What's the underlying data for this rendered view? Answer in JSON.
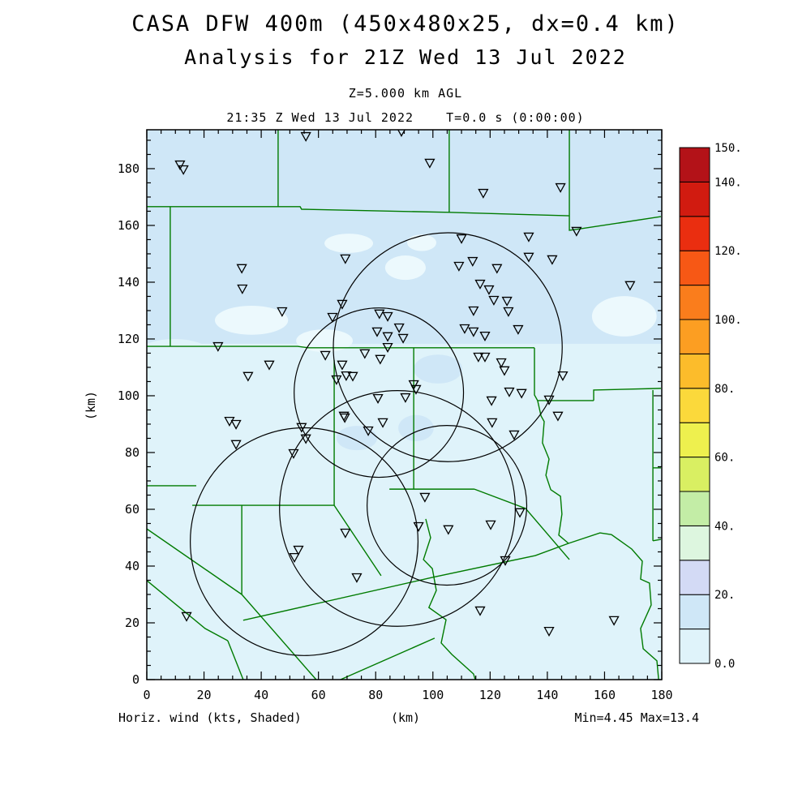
{
  "header": {
    "title_line1": "CASA DFW 400m (450x480x25, dx=0.4 km)",
    "title_line2": "Analysis for 21Z Wed 13 Jul 2022",
    "level_line": "Z=5.000 km AGL",
    "time_line": "21:35 Z Wed 13 Jul 2022    T=0.0 s (0:00:00)"
  },
  "footer": {
    "field_label": "Horiz. wind (kts, Shaded)",
    "axis_unit_label": "(km)",
    "range_label": "Min=4.45 Max=13.4"
  },
  "chart_data": {
    "type": "scatter",
    "description": "CASA DFW wind analysis map: shaded horizontal wind speed, county boundaries, radar range rings and observation station markers",
    "xlabel": "(km)",
    "ylabel": "(km)",
    "xlim": [
      0,
      180
    ],
    "ylim": [
      0,
      193.7
    ],
    "tick_minor_step": 5,
    "x_major_ticks": [
      0,
      20,
      40,
      60,
      80,
      100,
      120,
      140,
      160,
      180
    ],
    "y_major_ticks": [
      0,
      20,
      40,
      60,
      80,
      100,
      120,
      140,
      160,
      180
    ],
    "grid": false,
    "shading": {
      "field": "Horiz. wind (kts, Shaded)",
      "min": 4.45,
      "max": 13.4,
      "shade_low_color": "#dff3fa",
      "shade_high_color": "#cfe7f7",
      "pale_patch_color": "#ecf9fd",
      "high_band_y_from_km": 118.3,
      "light_patches_km": [
        [
          70.6,
          153.7,
          8.5,
          3.4
        ],
        [
          90.4,
          145.1,
          7.1,
          4.3
        ],
        [
          96.1,
          153.9,
          5.1,
          2.9
        ],
        [
          36.6,
          126.6,
          12.8,
          5.1
        ],
        [
          166.9,
          128.0,
          11.3,
          7.1
        ],
        [
          62.1,
          119.4,
          9.9,
          4.0
        ]
      ],
      "light_bites_km": [
        [
          9.6,
          112.0,
          15.6,
          8.0
        ],
        [
          42.2,
          109.4,
          17.0,
          7.4
        ],
        [
          81.9,
          104.6,
          15.6,
          11.4
        ],
        [
          124.4,
          109.4,
          12.8,
          6.9
        ],
        [
          164.1,
          110.9,
          14.2,
          6.3
        ]
      ],
      "dark_blobs_km": [
        [
          101.8,
          109.4,
          8.5,
          5.1
        ],
        [
          94.1,
          88.6,
          6.2,
          4.6
        ],
        [
          73.4,
          85.1,
          7.1,
          4.3
        ]
      ]
    },
    "colorbar": {
      "levels": [
        0,
        10,
        20,
        30,
        40,
        50,
        60,
        70,
        80,
        90,
        100,
        110,
        120,
        130,
        140,
        150
      ],
      "colors_bottom_to_top": [
        "#dff3fa",
        "#cfe7f7",
        "#d3daf5",
        "#ddf6df",
        "#c3eda6",
        "#d9ef62",
        "#eef04e",
        "#fbd93b",
        "#fcbc2b",
        "#fc9e22",
        "#fa7d1c",
        "#f75815",
        "#ea2e10",
        "#d11b10",
        "#b31218"
      ],
      "labeled_levels": [
        150,
        140,
        120,
        100,
        80,
        60,
        40,
        20,
        0
      ],
      "labels": [
        "150.",
        "140.",
        "120.",
        "100.",
        "80.",
        "60.",
        "40.",
        "20.",
        "0.0"
      ]
    },
    "range_rings_km": [
      {
        "cx": 105.2,
        "cy": 117.1,
        "r": 40.0
      },
      {
        "cx": 81.1,
        "cy": 101.1,
        "r": 29.6
      },
      {
        "cx": 55.0,
        "cy": 48.6,
        "r": 39.8
      },
      {
        "cx": 87.6,
        "cy": 60.3,
        "r": 41.2
      },
      {
        "cx": 104.9,
        "cy": 61.4,
        "r": 27.9
      }
    ],
    "station_markers_km": [
      [
        11.6,
        181.4
      ],
      [
        12.8,
        179.7
      ],
      [
        55.6,
        191.4
      ],
      [
        89.0,
        193.1
      ],
      [
        98.9,
        182.0
      ],
      [
        117.6,
        171.4
      ],
      [
        133.5,
        156.0
      ],
      [
        133.5,
        148.9
      ],
      [
        141.7,
        148.0
      ],
      [
        144.6,
        173.4
      ],
      [
        150.2,
        158.0
      ],
      [
        110.0,
        155.4
      ],
      [
        168.9,
        138.9
      ],
      [
        33.2,
        144.9
      ],
      [
        33.4,
        137.7
      ],
      [
        47.3,
        129.7
      ],
      [
        69.4,
        148.3
      ],
      [
        68.3,
        132.3
      ],
      [
        64.9,
        127.7
      ],
      [
        109.1,
        145.7
      ],
      [
        113.9,
        147.4
      ],
      [
        122.4,
        144.9
      ],
      [
        116.5,
        139.4
      ],
      [
        119.6,
        137.4
      ],
      [
        121.3,
        133.7
      ],
      [
        125.9,
        133.4
      ],
      [
        126.4,
        129.7
      ],
      [
        114.2,
        130.0
      ],
      [
        111.1,
        123.7
      ],
      [
        114.2,
        122.6
      ],
      [
        118.2,
        121.1
      ],
      [
        129.8,
        123.4
      ],
      [
        81.3,
        128.9
      ],
      [
        84.2,
        128.0
      ],
      [
        80.5,
        122.6
      ],
      [
        84.2,
        120.9
      ],
      [
        88.2,
        124.0
      ],
      [
        89.6,
        120.3
      ],
      [
        84.2,
        117.1
      ],
      [
        76.2,
        114.9
      ],
      [
        81.6,
        112.9
      ],
      [
        62.4,
        114.3
      ],
      [
        68.3,
        110.9
      ],
      [
        69.7,
        107.1
      ],
      [
        72.0,
        106.9
      ],
      [
        66.3,
        105.7
      ],
      [
        93.3,
        104.0
      ],
      [
        94.1,
        102.3
      ],
      [
        90.4,
        99.4
      ],
      [
        80.8,
        99.1
      ],
      [
        69.2,
        92.3
      ],
      [
        82.5,
        90.6
      ],
      [
        77.4,
        87.7
      ],
      [
        115.9,
        113.7
      ],
      [
        118.2,
        113.7
      ],
      [
        123.9,
        111.7
      ],
      [
        125.0,
        108.9
      ],
      [
        126.7,
        101.4
      ],
      [
        131.0,
        100.9
      ],
      [
        120.5,
        98.3
      ],
      [
        128.4,
        86.3
      ],
      [
        120.7,
        90.6
      ],
      [
        145.4,
        107.1
      ],
      [
        140.6,
        98.6
      ],
      [
        143.7,
        92.9
      ],
      [
        24.9,
        117.4
      ],
      [
        35.4,
        106.9
      ],
      [
        42.8,
        110.9
      ],
      [
        28.9,
        91.1
      ],
      [
        31.2,
        90.0
      ],
      [
        31.2,
        82.9
      ],
      [
        54.1,
        88.9
      ],
      [
        55.6,
        84.9
      ],
      [
        51.3,
        79.7
      ],
      [
        68.9,
        92.9
      ],
      [
        97.2,
        64.3
      ],
      [
        95.0,
        54.0
      ],
      [
        105.4,
        52.9
      ],
      [
        69.4,
        51.7
      ],
      [
        53.0,
        45.7
      ],
      [
        51.6,
        43.1
      ],
      [
        73.4,
        36.0
      ],
      [
        120.2,
        54.6
      ],
      [
        130.4,
        58.9
      ],
      [
        125.3,
        42.0
      ],
      [
        116.5,
        24.3
      ],
      [
        140.6,
        17.1
      ],
      [
        163.3,
        20.9
      ],
      [
        13.9,
        22.3
      ]
    ],
    "county_lines_km": [
      [
        [
          0,
          166.6
        ],
        [
          53.6,
          166.6
        ],
        [
          54.1,
          165.7
        ],
        [
          105.7,
          164.6
        ],
        [
          147.7,
          163.4
        ]
      ],
      [
        [
          147.7,
          193.7
        ],
        [
          147.7,
          158.3
        ],
        [
          150.2,
          158.6
        ],
        [
          179.7,
          163.1
        ]
      ],
      [
        [
          45.9,
          193.7
        ],
        [
          45.9,
          166.6
        ]
      ],
      [
        [
          105.7,
          193.7
        ],
        [
          105.7,
          164.6
        ]
      ],
      [
        [
          8.2,
          166.6
        ],
        [
          8.2,
          117.4
        ]
      ],
      [
        [
          0,
          117.4
        ],
        [
          52.7,
          117.4
        ],
        [
          56.4,
          116.9
        ],
        [
          135.5,
          116.9
        ]
      ],
      [
        [
          135.5,
          116.9
        ],
        [
          135.5,
          100.3
        ],
        [
          136.6,
          98.3
        ],
        [
          156.2,
          98.3
        ]
      ],
      [
        [
          156.2,
          98.3
        ],
        [
          156.2,
          102.0
        ],
        [
          179.7,
          102.6
        ]
      ],
      [
        [
          176.9,
          102.0
        ],
        [
          176.9,
          48.9
        ]
      ],
      [
        [
          176.9,
          74.6
        ],
        [
          179.7,
          74.6
        ]
      ],
      [
        [
          176.9,
          48.9
        ],
        [
          179.7,
          49.4
        ]
      ],
      [
        [
          136.6,
          98.3
        ],
        [
          137.8,
          92.9
        ],
        [
          138.9,
          90.9
        ],
        [
          138.3,
          83.4
        ],
        [
          140.6,
          77.7
        ],
        [
          139.5,
          72.0
        ],
        [
          141.2,
          66.9
        ],
        [
          144.6,
          64.6
        ],
        [
          145.1,
          58.3
        ],
        [
          144.0,
          50.9
        ],
        [
          147.4,
          48.0
        ]
      ],
      [
        [
          147.4,
          48.0
        ],
        [
          158.4,
          51.7
        ],
        [
          162.4,
          51.1
        ],
        [
          169.5,
          46.0
        ],
        [
          173.2,
          41.7
        ],
        [
          172.6,
          35.4
        ],
        [
          175.7,
          34.0
        ],
        [
          176.3,
          26.3
        ],
        [
          172.6,
          18.0
        ],
        [
          173.5,
          10.9
        ],
        [
          178.3,
          6.6
        ],
        [
          178.9,
          0
        ]
      ],
      [
        [
          33.7,
          20.9
        ],
        [
          99.8,
          36.0
        ],
        [
          135.8,
          43.7
        ],
        [
          147.4,
          48.0
        ]
      ],
      [
        [
          67.7,
          0
        ],
        [
          100.6,
          14.6
        ]
      ],
      [
        [
          28.3,
          13.7
        ],
        [
          33.7,
          0
        ]
      ],
      [
        [
          97.5,
          56.6
        ],
        [
          99.2,
          50.0
        ],
        [
          96.7,
          42.3
        ],
        [
          99.8,
          39.1
        ],
        [
          101.2,
          31.4
        ],
        [
          98.6,
          25.4
        ],
        [
          104.6,
          21.1
        ],
        [
          102.9,
          12.9
        ],
        [
          106.6,
          8.9
        ],
        [
          114.2,
          2.0
        ],
        [
          114.8,
          0
        ]
      ],
      [
        [
          0,
          68.3
        ],
        [
          17.3,
          68.3
        ]
      ],
      [
        [
          15.9,
          61.4
        ],
        [
          65.5,
          61.4
        ]
      ],
      [
        [
          33.2,
          61.4
        ],
        [
          33.2,
          30.0
        ]
      ],
      [
        [
          65.5,
          112.6
        ],
        [
          65.5,
          61.4
        ]
      ],
      [
        [
          65.5,
          61.4
        ],
        [
          81.9,
          36.6
        ]
      ],
      [
        [
          0,
          53.1
        ],
        [
          33.2,
          30.0
        ]
      ],
      [
        [
          33.2,
          30.0
        ],
        [
          59.2,
          0
        ]
      ],
      [
        [
          0,
          34.9
        ],
        [
          20.4,
          18.0
        ],
        [
          28.3,
          13.7
        ]
      ],
      [
        [
          93.3,
          116.9
        ],
        [
          93.3,
          67.1
        ]
      ],
      [
        [
          84.8,
          67.1
        ],
        [
          114.5,
          67.1
        ]
      ],
      [
        [
          114.5,
          67.1
        ],
        [
          132.4,
          60.3
        ],
        [
          147.7,
          42.3
        ]
      ]
    ],
    "colors": {
      "county_line": "#007b00",
      "ring_line": "#000000",
      "marker_line": "#000000",
      "axis_line": "#000000"
    }
  }
}
